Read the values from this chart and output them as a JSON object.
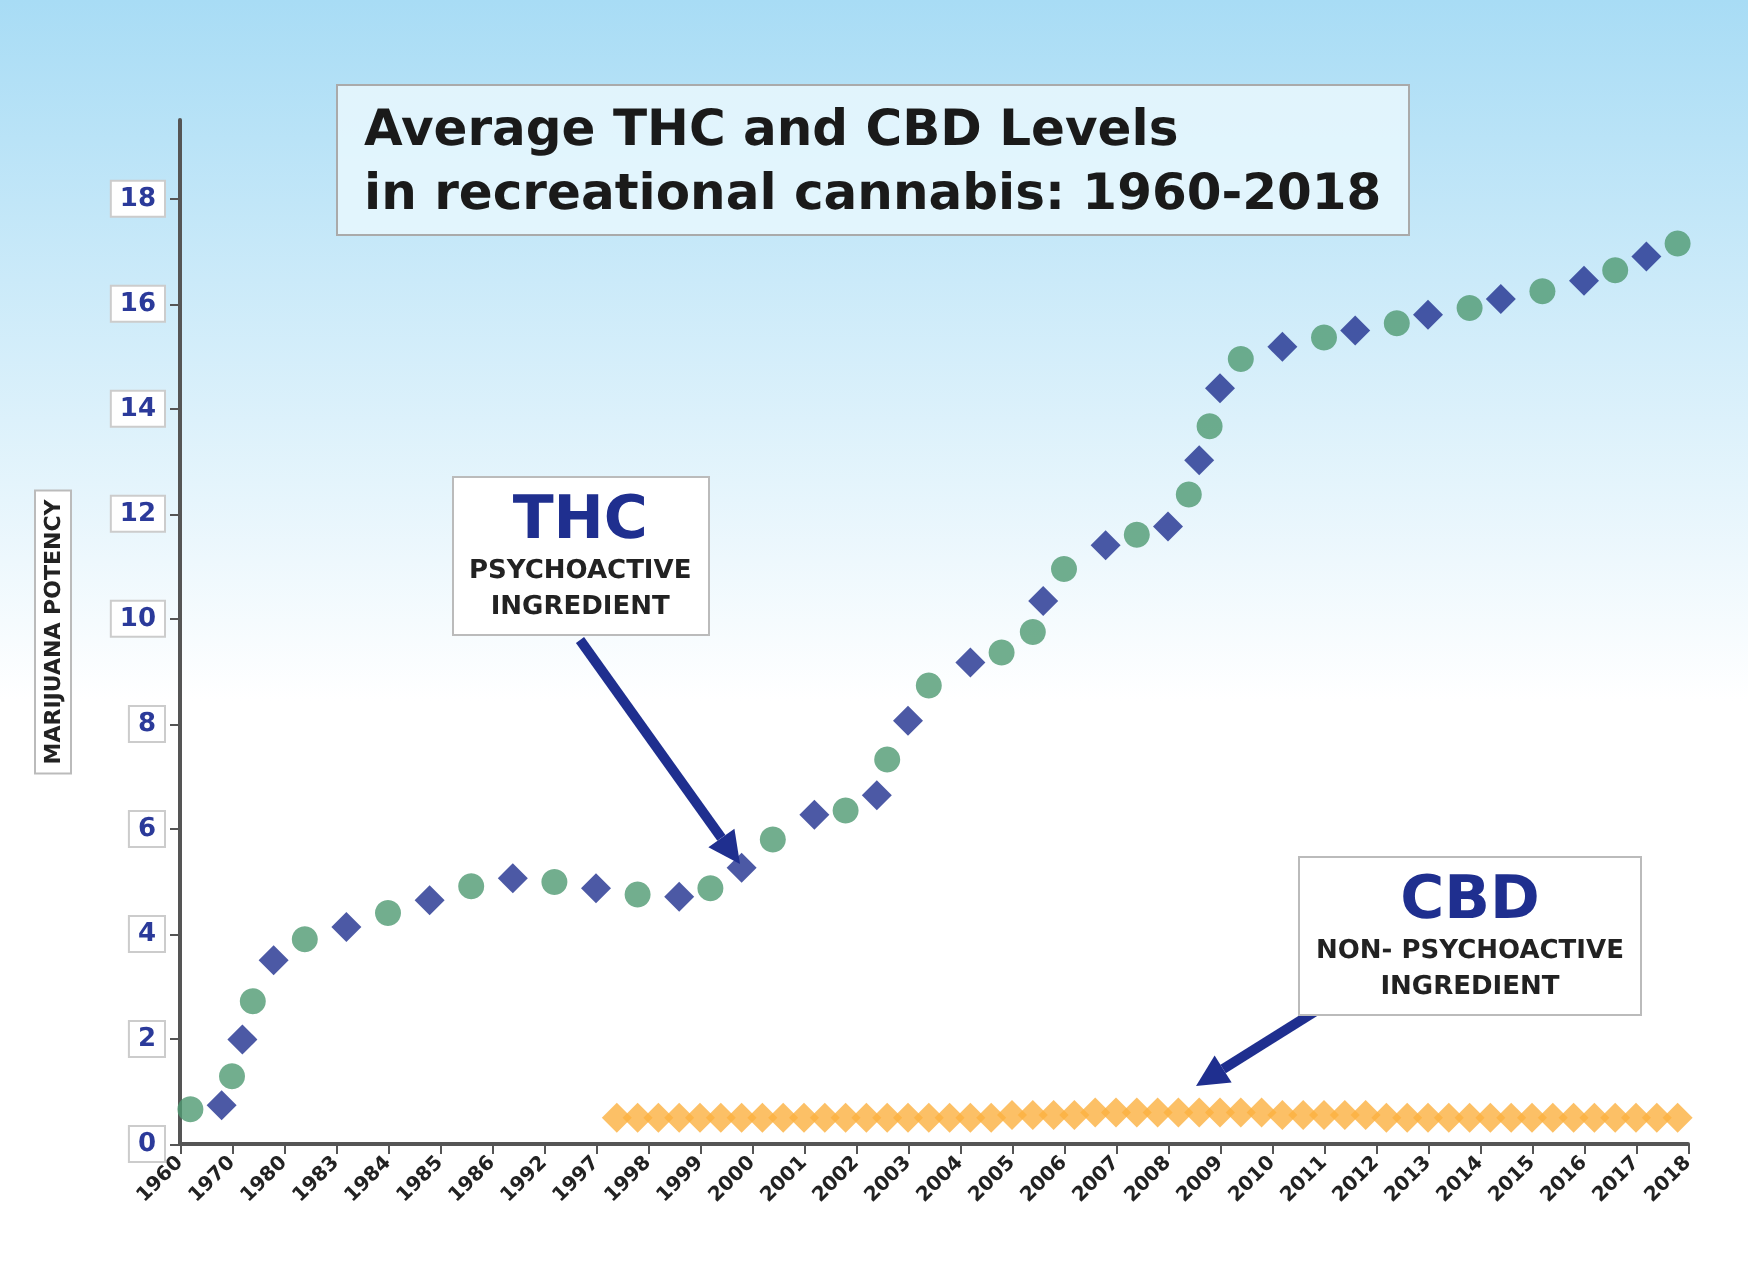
{
  "chart_data": {
    "type": "scatter",
    "title": "Average THC and CBD Levels\nin recreational cannabis: 1960-2018",
    "ylabel": "MARIJUANA POTENCY",
    "categories": [
      "1960",
      null,
      null,
      null,
      null,
      "1970",
      null,
      null,
      null,
      null,
      "1980",
      null,
      null,
      null,
      null,
      "1983",
      null,
      null,
      null,
      null,
      "1984",
      null,
      null,
      null,
      null,
      "1985",
      null,
      null,
      null,
      null,
      "1986",
      null,
      null,
      null,
      null,
      "1992",
      null,
      null,
      null,
      null,
      "1997",
      null,
      null,
      null,
      null,
      "1998",
      null,
      null,
      null,
      null,
      "1999",
      null,
      null,
      null,
      null,
      "2000",
      null,
      null,
      null,
      null,
      "2001",
      null,
      null,
      null,
      null,
      "2002",
      null,
      null,
      null,
      null,
      "2003",
      null,
      null,
      null,
      null,
      "2004",
      null,
      null,
      null,
      null,
      "2005",
      null,
      null,
      null,
      null,
      "2006",
      null,
      null,
      null,
      null,
      "2007",
      null,
      null,
      null,
      null,
      "2008",
      null,
      null,
      null,
      null,
      "2009",
      null,
      null,
      null,
      null,
      "2010",
      null,
      null,
      null,
      null,
      "2011",
      null,
      null,
      null,
      null,
      "2012",
      null,
      null,
      null,
      null,
      "2013",
      null,
      null,
      null,
      null,
      "2014",
      null,
      null,
      null,
      null,
      "2015",
      null,
      null,
      null,
      null,
      "2016",
      null,
      null,
      null,
      null,
      "2017",
      null,
      null,
      null,
      null,
      "2018"
    ],
    "ylim": [
      0,
      19.5
    ],
    "yticks": [
      0,
      2,
      4,
      6,
      8,
      10,
      12,
      14,
      16,
      18
    ],
    "grid": false,
    "series": [
      {
        "color": "#4f9a72",
        "marker": "circle",
        "values": [
          null,
          0.66,
          null,
          null,
          null,
          1.29,
          null,
          2.72,
          null,
          null,
          null,
          null,
          3.9,
          null,
          null,
          null,
          null,
          null,
          null,
          null,
          4.4,
          null,
          null,
          null,
          null,
          null,
          null,
          null,
          4.91,
          null,
          null,
          null,
          null,
          null,
          null,
          null,
          4.99,
          null,
          null,
          null,
          null,
          null,
          null,
          null,
          4.75,
          null,
          null,
          null,
          null,
          null,
          null,
          4.87,
          null,
          null,
          null,
          null,
          null,
          5.8,
          null,
          null,
          null,
          null,
          null,
          null,
          6.35,
          null,
          null,
          null,
          7.32,
          null,
          null,
          null,
          8.73,
          null,
          null,
          null,
          null,
          null,
          null,
          9.36,
          null,
          null,
          9.75,
          null,
          null,
          10.95,
          null,
          null,
          null,
          null,
          null,
          null,
          11.6,
          null,
          null,
          null,
          null,
          12.37,
          null,
          13.67,
          null,
          null,
          14.95,
          null,
          null,
          null,
          null,
          null,
          null,
          null,
          15.36,
          null,
          null,
          null,
          null,
          null,
          null,
          15.63,
          null,
          null,
          null,
          null,
          null,
          null,
          15.92,
          null,
          null,
          null,
          null,
          null,
          null,
          16.24,
          null,
          null,
          null,
          null,
          null,
          null,
          16.64,
          null,
          null,
          null,
          null,
          null,
          17.15,
          null
        ]
      },
      {
        "color": "#1f2f8f",
        "marker": "diamond",
        "values": [
          null,
          null,
          null,
          null,
          0.74,
          null,
          1.99,
          null,
          null,
          3.5,
          null,
          null,
          null,
          null,
          null,
          null,
          4.13,
          null,
          null,
          null,
          null,
          null,
          null,
          null,
          4.64,
          null,
          null,
          null,
          null,
          null,
          null,
          null,
          5.06,
          null,
          null,
          null,
          null,
          null,
          null,
          null,
          4.87,
          null,
          null,
          null,
          null,
          null,
          null,
          null,
          4.71,
          null,
          null,
          null,
          null,
          null,
          5.26,
          null,
          null,
          null,
          null,
          null,
          null,
          6.27,
          null,
          null,
          null,
          null,
          null,
          6.64,
          null,
          null,
          8.06,
          null,
          null,
          null,
          null,
          null,
          9.17,
          null,
          null,
          null,
          null,
          null,
          null,
          10.34,
          null,
          null,
          null,
          null,
          null,
          11.4,
          null,
          null,
          null,
          null,
          null,
          11.76,
          null,
          null,
          13.02,
          null,
          14.39,
          null,
          null,
          null,
          null,
          null,
          15.18,
          null,
          null,
          null,
          null,
          null,
          null,
          15.49,
          null,
          null,
          null,
          null,
          null,
          null,
          15.79,
          null,
          null,
          null,
          null,
          null,
          null,
          16.09,
          null,
          null,
          null,
          null,
          null,
          null,
          null,
          16.44,
          null,
          null,
          null,
          null,
          null,
          16.9,
          null,
          null,
          null,
          null
        ]
      },
      {
        "color": "#fbb040",
        "marker": "diamond",
        "values": [
          null,
          null,
          null,
          null,
          null,
          null,
          null,
          null,
          null,
          null,
          null,
          null,
          null,
          null,
          null,
          null,
          null,
          null,
          null,
          null,
          null,
          null,
          null,
          null,
          null,
          null,
          null,
          null,
          null,
          null,
          null,
          null,
          null,
          null,
          null,
          null,
          null,
          null,
          null,
          null,
          null,
          null,
          0.5,
          null,
          0.5,
          null,
          0.5,
          null,
          0.5,
          null,
          0.5,
          null,
          0.5,
          null,
          0.5,
          null,
          0.5,
          null,
          0.5,
          null,
          0.5,
          null,
          0.5,
          null,
          0.5,
          null,
          0.5,
          null,
          0.5,
          null,
          0.5,
          null,
          0.5,
          null,
          0.5,
          null,
          0.5,
          null,
          0.5,
          null,
          0.55,
          null,
          0.55,
          null,
          0.55,
          null,
          0.55,
          null,
          0.6,
          null,
          0.6,
          null,
          0.6,
          null,
          0.6,
          null,
          0.6,
          null,
          0.6,
          null,
          0.6,
          null,
          0.6,
          null,
          0.6,
          null,
          0.55,
          null,
          0.55,
          null,
          0.55,
          null,
          0.55,
          null,
          0.55,
          null,
          0.5,
          null,
          0.5,
          null,
          0.5,
          null,
          0.5,
          null,
          0.5,
          null,
          0.5,
          null,
          0.5,
          null,
          0.5,
          null,
          0.5,
          null,
          0.5,
          null,
          0.5,
          null,
          0.5,
          null,
          0.5,
          null,
          0.5,
          null,
          0.5,
          null
        ]
      }
    ],
    "annotations": [
      "THC\nPSYCHOACTIVE\nINGREDIENT",
      "CBD\nNON- PSYCHOACTIVE\nINGREDIENT"
    ]
  }
}
